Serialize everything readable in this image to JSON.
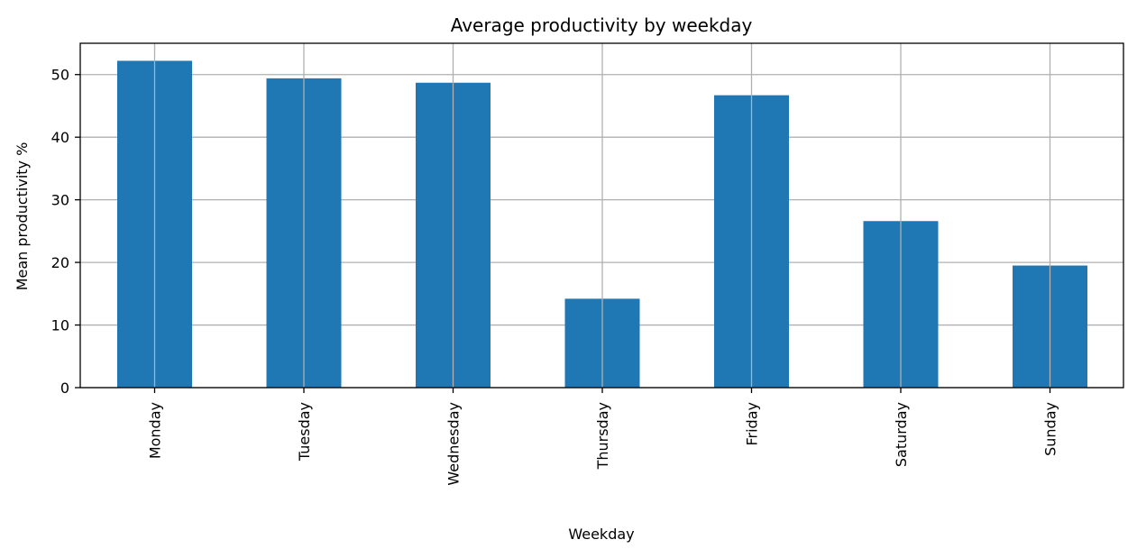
{
  "chart_data": {
    "type": "bar",
    "title": "Average productivity by weekday",
    "xlabel": "Weekday",
    "ylabel": "Mean productivity %",
    "categories": [
      "Monday",
      "Tuesday",
      "Wednesday",
      "Thursday",
      "Friday",
      "Saturday",
      "Sunday"
    ],
    "values": [
      52.2,
      49.4,
      48.7,
      14.2,
      46.7,
      26.6,
      19.5
    ],
    "ylim": [
      0,
      55
    ],
    "yticks": [
      0,
      10,
      20,
      30,
      40,
      50
    ],
    "grid": true,
    "bar_color": "#1f77b4",
    "legend": "none"
  }
}
